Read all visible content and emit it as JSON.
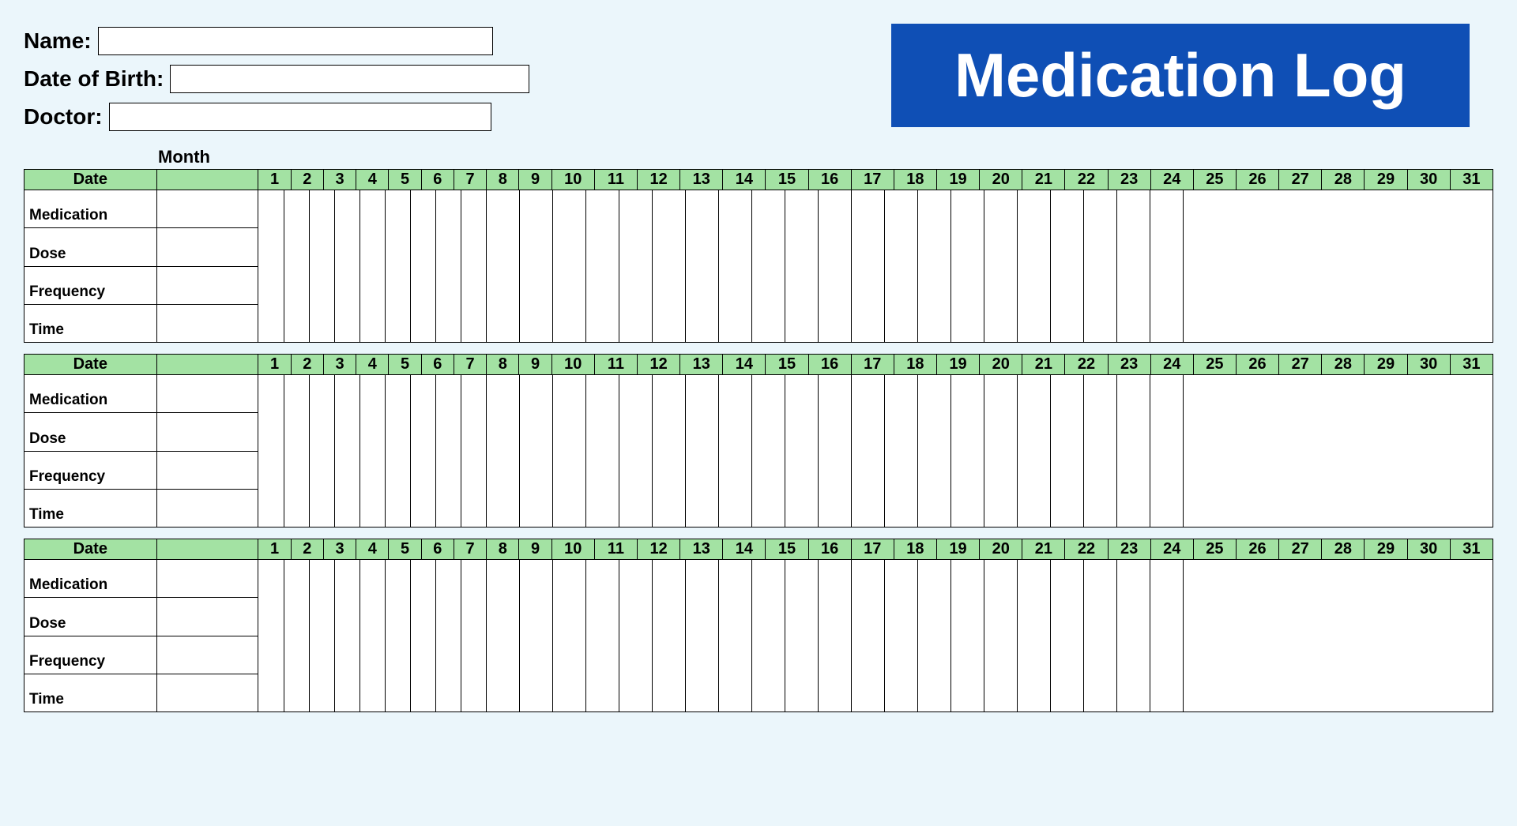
{
  "title": "Medication Log",
  "colors": {
    "page_bg": "#ebf6fb",
    "title_bg": "#0f4fb5",
    "title_fg": "#ffffff",
    "header_bg": "#a3e2a3",
    "cell_bg": "#ffffff",
    "border": "#000000"
  },
  "fields": {
    "name": {
      "label": "Name:",
      "value": ""
    },
    "dob": {
      "label": "Date of Birth:",
      "value": ""
    },
    "doctor": {
      "label": "Doctor:",
      "value": ""
    }
  },
  "month_label": "Month",
  "table": {
    "date_header": "Date",
    "days": [
      "1",
      "2",
      "3",
      "4",
      "5",
      "6",
      "7",
      "8",
      "9",
      "10",
      "11",
      "12",
      "13",
      "14",
      "15",
      "16",
      "17",
      "18",
      "19",
      "20",
      "21",
      "22",
      "23",
      "24",
      "25",
      "26",
      "27",
      "28",
      "29",
      "30",
      "31"
    ],
    "row_labels": [
      "Medication",
      "Dose",
      "Frequency",
      "Time"
    ],
    "block_count": 3
  }
}
